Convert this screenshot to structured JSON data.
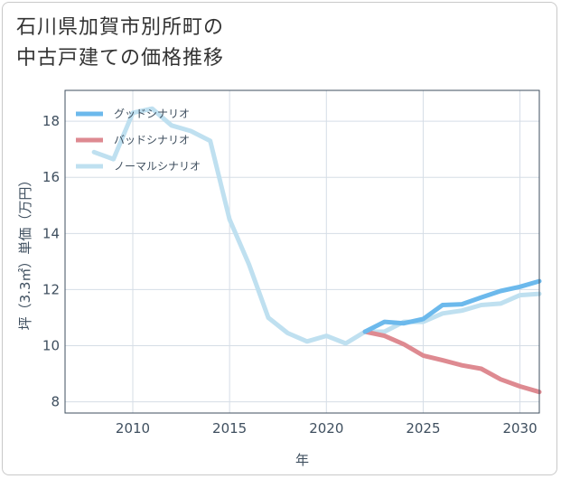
{
  "title_lines": [
    "石川県加賀市別所町の",
    "中古戸建ての価格推移"
  ],
  "chart_data": {
    "type": "line",
    "title": "石川県加賀市別所町の中古戸建ての価格推移",
    "xlabel": "年",
    "ylabel": "坪（3.3㎡）単価（万円）",
    "xlim": [
      2006.5,
      2031
    ],
    "ylim": [
      7.6,
      19.1
    ],
    "xticks": [
      2010,
      2015,
      2020,
      2025,
      2030
    ],
    "yticks": [
      8,
      10,
      12,
      14,
      16,
      18
    ],
    "grid": true,
    "legend_position": "top-left",
    "series": [
      {
        "name": "グッドシナリオ",
        "color": "#6cb9ec",
        "x": [
          2022,
          2023,
          2024,
          2025,
          2026,
          2027,
          2028,
          2029,
          2030,
          2031
        ],
        "y": [
          10.5,
          10.85,
          10.8,
          10.95,
          11.45,
          11.48,
          11.72,
          11.95,
          12.1,
          12.3
        ]
      },
      {
        "name": "バッドシナリオ",
        "color": "#de8a91",
        "x": [
          2022,
          2023,
          2024,
          2025,
          2026,
          2027,
          2028,
          2029,
          2030,
          2031
        ],
        "y": [
          10.5,
          10.35,
          10.05,
          9.65,
          9.48,
          9.3,
          9.18,
          8.8,
          8.55,
          8.35
        ]
      },
      {
        "name": "ノーマルシナリオ",
        "color": "#bfe0f0",
        "x": [
          2008,
          2009,
          2010,
          2011,
          2012,
          2013,
          2014,
          2015,
          2016,
          2017,
          2018,
          2019,
          2020,
          2021,
          2022,
          2023,
          2024,
          2025,
          2026,
          2027,
          2028,
          2029,
          2030,
          2031
        ],
        "y": [
          16.9,
          16.65,
          18.3,
          18.45,
          17.85,
          17.65,
          17.3,
          14.5,
          12.9,
          11.0,
          10.45,
          10.15,
          10.35,
          10.08,
          10.5,
          10.5,
          10.85,
          10.85,
          11.15,
          11.25,
          11.45,
          11.5,
          11.8,
          11.85
        ]
      }
    ]
  }
}
